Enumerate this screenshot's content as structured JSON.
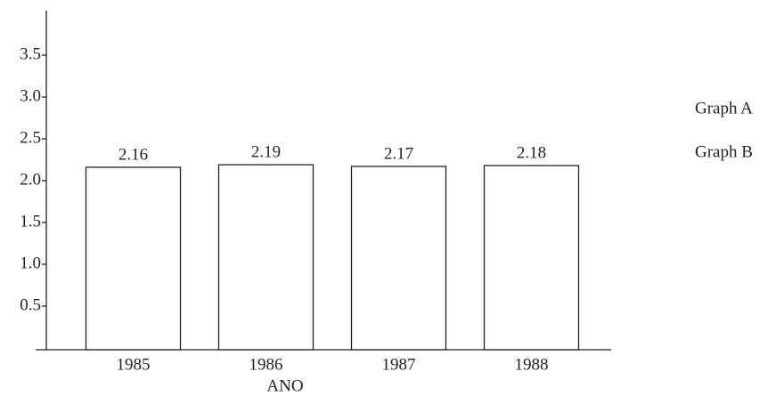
{
  "chart_data": {
    "type": "bar",
    "xlabel": "ANO",
    "categories": [
      "1985",
      "1986",
      "1987",
      "1988"
    ],
    "values": [
      2.16,
      2.19,
      2.17,
      2.18
    ],
    "color": "#ffffff",
    "ylim": [
      0,
      4
    ],
    "yticks": [
      0.5,
      {
        "value": 1,
        "label": "1.0"
      },
      1.5,
      {
        "value": 2,
        "label": "2.0"
      },
      2.5,
      {
        "value": 3,
        "label": "3.0"
      },
      3.5
    ],
    "annotations": [
      "Graph A",
      "Graph B"
    ]
  }
}
